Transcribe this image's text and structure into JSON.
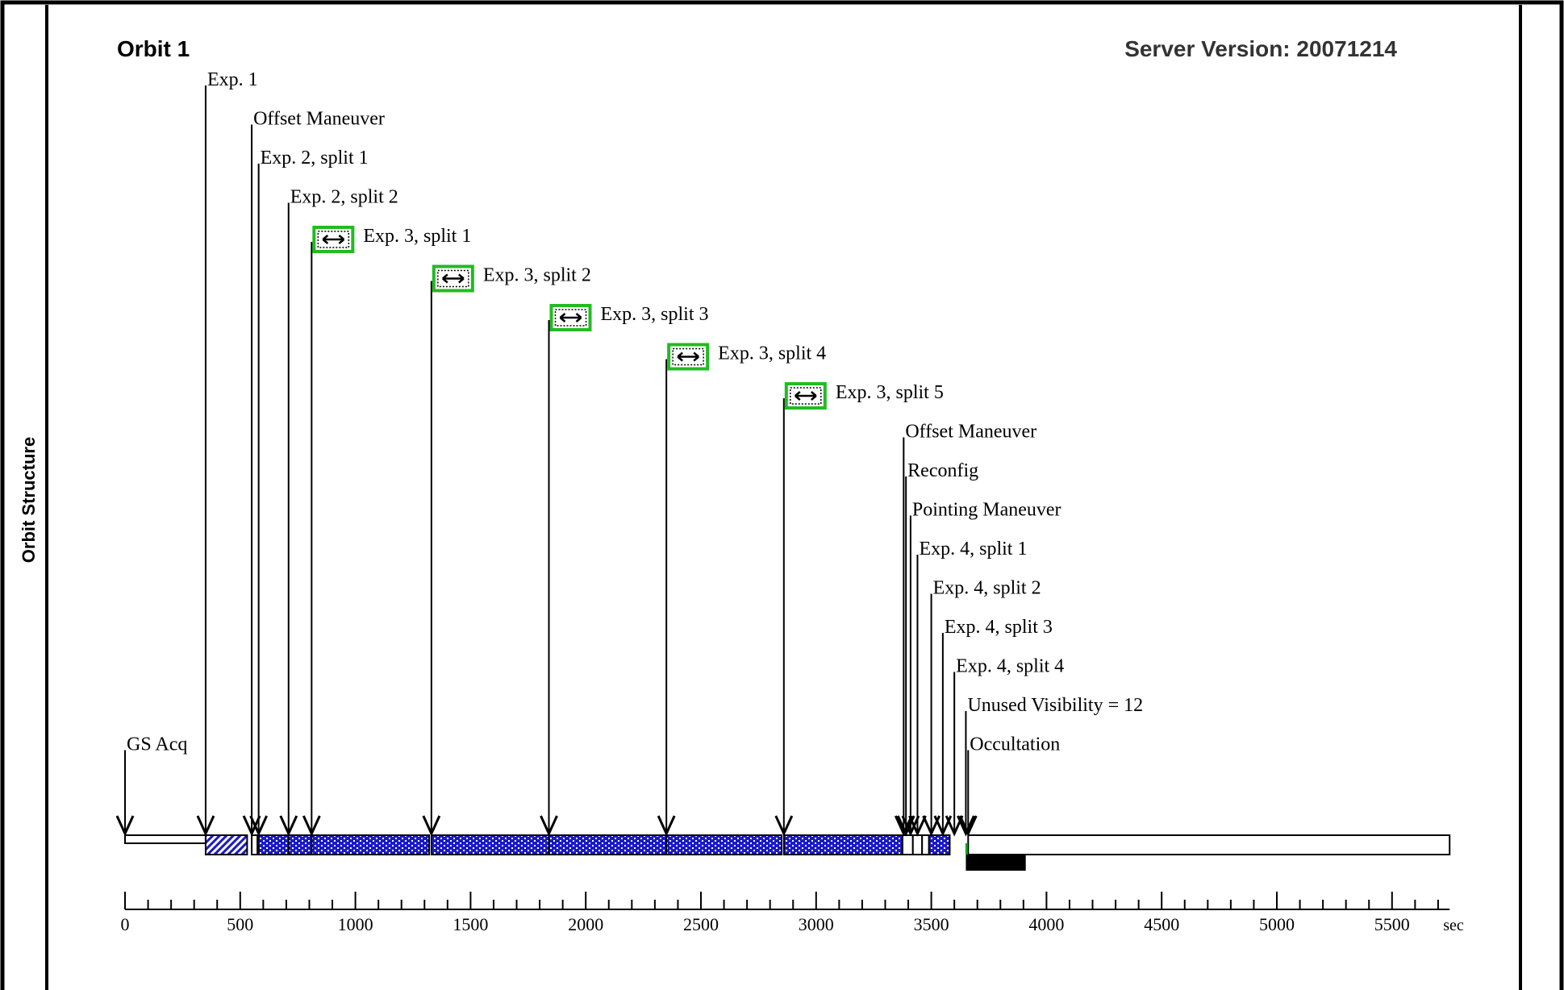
{
  "header": {
    "title": "Orbit 1",
    "server_version": "Server Version: 20071214",
    "side_title": "Orbit Structure"
  },
  "chart_data": {
    "type": "timeline",
    "unit": "sec",
    "x_range": [
      0,
      5750
    ],
    "major_ticks": [
      0,
      500,
      1000,
      1500,
      2000,
      2500,
      3000,
      3500,
      4000,
      4500,
      5000,
      5500
    ],
    "minor_tick_step": 100,
    "major_tick_labels": [
      "0",
      "500",
      "1000",
      "1500",
      "2000",
      "2500",
      "3000",
      "3500",
      "4000",
      "4500",
      "5000",
      "5500"
    ],
    "unit_label": "sec",
    "events": [
      {
        "label": "GS Acq",
        "t": 0,
        "level": 17
      },
      {
        "label": "Exp. 1",
        "t": 350,
        "level": 0
      },
      {
        "label": "Offset Maneuver",
        "t": 550,
        "level": 1
      },
      {
        "label": "Exp. 2, split 1",
        "t": 580,
        "level": 2
      },
      {
        "label": "Exp. 2, split 2",
        "t": 710,
        "level": 3
      },
      {
        "label": "Exp. 3, split 1",
        "t": 810,
        "level": 4,
        "icon": true
      },
      {
        "label": "Exp. 3, split 2",
        "t": 1330,
        "level": 5,
        "icon": true
      },
      {
        "label": "Exp. 3, split 3",
        "t": 1840,
        "level": 6,
        "icon": true
      },
      {
        "label": "Exp. 3, split 4",
        "t": 2350,
        "level": 7,
        "icon": true
      },
      {
        "label": "Exp. 3, split 5",
        "t": 2860,
        "level": 8,
        "icon": true
      },
      {
        "label": "Offset Maneuver",
        "t": 3380,
        "level": 9
      },
      {
        "label": "Reconfig",
        "t": 3390,
        "level": 10
      },
      {
        "label": "Pointing Maneuver",
        "t": 3410,
        "level": 11
      },
      {
        "label": "Exp. 4, split 1",
        "t": 3440,
        "level": 12
      },
      {
        "label": "Exp. 4, split 2",
        "t": 3500,
        "level": 13
      },
      {
        "label": "Exp. 4, split 3",
        "t": 3550,
        "level": 14
      },
      {
        "label": "Exp. 4, split 4",
        "t": 3600,
        "level": 15
      },
      {
        "label": "Unused Visibility = 12",
        "t": 3650,
        "level": 16
      },
      {
        "label": "Occultation",
        "t": 3660,
        "level": 17
      }
    ],
    "segments": [
      {
        "kind": "empty",
        "t0": 0,
        "t1": 350
      },
      {
        "kind": "hatch",
        "t0": 350,
        "t1": 530
      },
      {
        "kind": "empty",
        "t0": 550,
        "t1": 575
      },
      {
        "kind": "dots",
        "t0": 575,
        "t1": 1320
      },
      {
        "kind": "dots",
        "t0": 1330,
        "t1": 2850
      },
      {
        "kind": "dots",
        "t0": 2860,
        "t1": 3375
      },
      {
        "kind": "empty",
        "t0": 3375,
        "t1": 3420
      },
      {
        "kind": "empty",
        "t0": 3420,
        "t1": 3460
      },
      {
        "kind": "empty",
        "t0": 3460,
        "t1": 3490
      },
      {
        "kind": "dots",
        "t0": 3490,
        "t1": 3580
      },
      {
        "kind": "empty",
        "t0": 3660,
        "t1": 5750
      }
    ],
    "dividers": [
      580,
      710,
      810,
      1840,
      2350
    ],
    "occultation_bar": {
      "t0": 3650,
      "t1": 3910
    },
    "colors": {
      "fill": "#1a1ac8",
      "icon_border": "#22bb22",
      "black": "#000000",
      "green_tick": "#00aa00"
    }
  }
}
